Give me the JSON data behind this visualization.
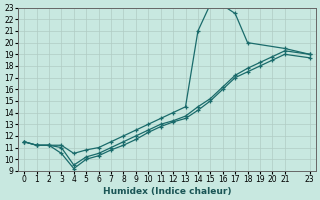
{
  "bg_color": "#c8e8e0",
  "grid_color": "#b0ccc4",
  "line_color": "#1a6b6b",
  "xlabel": "Humidex (Indice chaleur)",
  "xlim": [
    -0.5,
    23.5
  ],
  "ylim": [
    9,
    23
  ],
  "xticks": [
    0,
    1,
    2,
    3,
    4,
    5,
    6,
    7,
    8,
    9,
    10,
    11,
    12,
    13,
    14,
    15,
    16,
    17,
    18,
    19,
    20,
    21,
    23
  ],
  "yticks": [
    9,
    10,
    11,
    12,
    13,
    14,
    15,
    16,
    17,
    18,
    19,
    20,
    21,
    22,
    23
  ],
  "line1_x": [
    0,
    1,
    2,
    3,
    4,
    5,
    6,
    7,
    8,
    9,
    10,
    11,
    12,
    13,
    14,
    15,
    16,
    17,
    18,
    21,
    23
  ],
  "line1_y": [
    11.5,
    11.2,
    11.2,
    11.2,
    10.5,
    10.8,
    11.0,
    11.5,
    12.0,
    12.5,
    13.0,
    13.5,
    14.0,
    14.5,
    21.0,
    23.3,
    23.2,
    22.5,
    20.0,
    19.5,
    19.0
  ],
  "line2_x": [
    0,
    1,
    2,
    3,
    4,
    5,
    6,
    7,
    8,
    9,
    10,
    11,
    12,
    13,
    14,
    15,
    16,
    17,
    18,
    19,
    20,
    21,
    23
  ],
  "line2_y": [
    11.5,
    11.2,
    11.2,
    11.0,
    9.5,
    10.2,
    10.5,
    11.0,
    11.5,
    12.0,
    12.5,
    13.0,
    13.3,
    13.7,
    14.5,
    15.2,
    16.2,
    17.2,
    17.8,
    18.3,
    18.8,
    19.3,
    19.0
  ],
  "line3_x": [
    0,
    1,
    2,
    3,
    4,
    5,
    6,
    7,
    8,
    9,
    10,
    11,
    12,
    13,
    14,
    15,
    16,
    17,
    18,
    19,
    20,
    21,
    23
  ],
  "line3_y": [
    11.5,
    11.2,
    11.2,
    10.5,
    9.2,
    10.0,
    10.3,
    10.8,
    11.2,
    11.7,
    12.3,
    12.8,
    13.2,
    13.5,
    14.2,
    15.0,
    16.0,
    17.0,
    17.5,
    18.0,
    18.5,
    19.0,
    18.7
  ]
}
